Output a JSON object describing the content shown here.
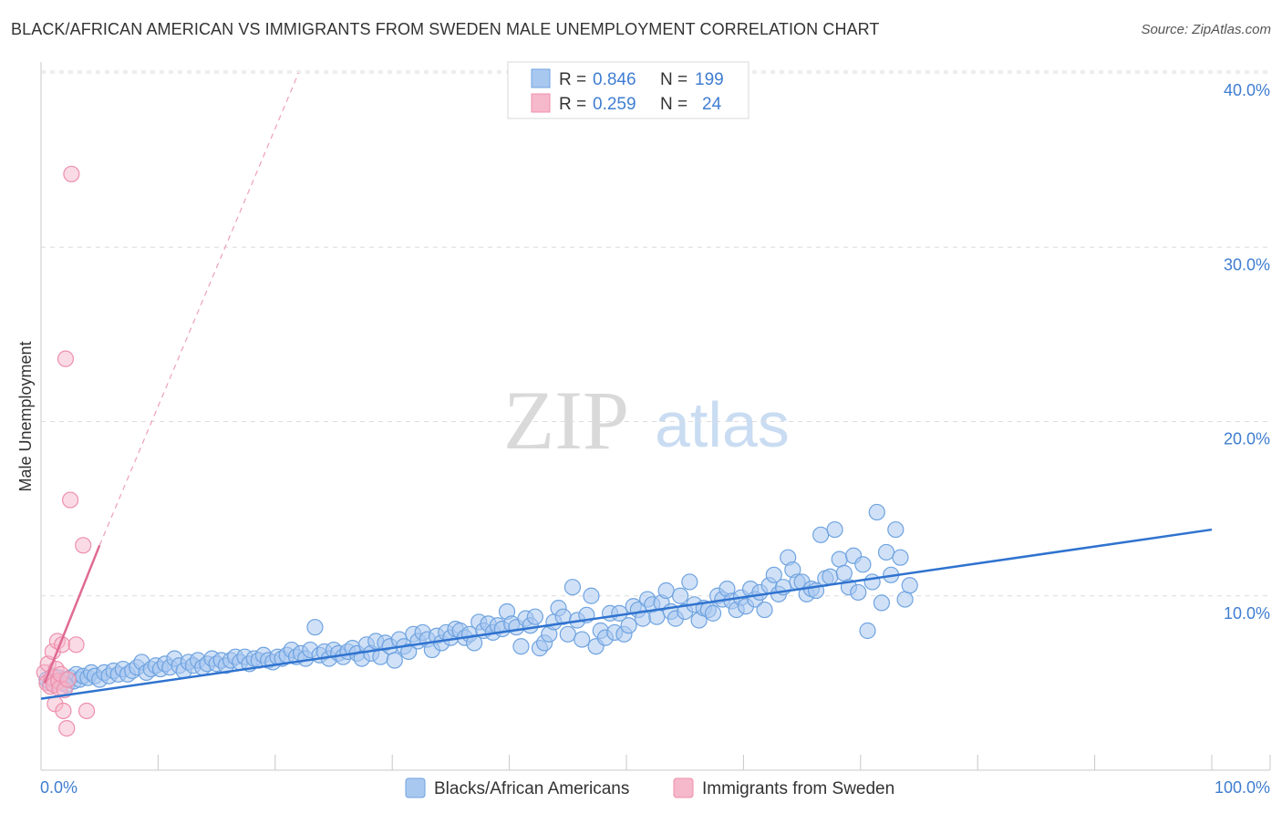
{
  "title": "BLACK/AFRICAN AMERICAN VS IMMIGRANTS FROM SWEDEN MALE UNEMPLOYMENT CORRELATION CHART",
  "source": "Source: ZipAtlas.com",
  "watermark": {
    "zip": "ZIP",
    "atlas": "atlas"
  },
  "legend": {
    "rows": [
      {
        "r_label": "R =",
        "r_value": "0.846",
        "n_label": "N =",
        "n_value": "199",
        "color": "#a9c8f0"
      },
      {
        "r_label": "R =",
        "r_value": "0.259",
        "n_label": "N =",
        "n_value": "24",
        "color": "#f6b8cb"
      }
    ]
  },
  "chart_data": {
    "type": "scatter",
    "title": "BLACK/AFRICAN AMERICAN VS IMMIGRANTS FROM SWEDEN MALE UNEMPLOYMENT CORRELATION CHART",
    "xlabel": "",
    "ylabel": "Male Unemployment",
    "xlim": [
      0,
      100
    ],
    "ylim": [
      0,
      40
    ],
    "x_tick_labels": [
      "0.0%",
      "100.0%"
    ],
    "y_ticks": [
      10,
      20,
      30,
      40
    ],
    "y_tick_labels": [
      "10.0%",
      "20.0%",
      "30.0%",
      "40.0%"
    ],
    "grid": true,
    "legend_position": "bottom",
    "series": [
      {
        "name": "Blacks/African Americans",
        "color": "#6fa3e0",
        "fill": "#a9c8f0",
        "r": 0.846,
        "n": 199,
        "trendline": {
          "x": [
            0,
            100
          ],
          "y": [
            4.1,
            13.8
          ]
        },
        "points": [
          [
            0.5,
            5.2
          ],
          [
            0.8,
            5.0
          ],
          [
            1.0,
            5.4
          ],
          [
            1.2,
            5.1
          ],
          [
            1.5,
            5.3
          ],
          [
            1.8,
            5.0
          ],
          [
            2.0,
            5.2
          ],
          [
            2.2,
            4.9
          ],
          [
            2.5,
            5.3
          ],
          [
            2.8,
            5.1
          ],
          [
            3.0,
            5.5
          ],
          [
            3.3,
            5.2
          ],
          [
            3.6,
            5.4
          ],
          [
            4.0,
            5.3
          ],
          [
            4.3,
            5.6
          ],
          [
            4.6,
            5.4
          ],
          [
            5.0,
            5.2
          ],
          [
            5.4,
            5.6
          ],
          [
            5.8,
            5.4
          ],
          [
            6.2,
            5.7
          ],
          [
            6.6,
            5.5
          ],
          [
            7.0,
            5.8
          ],
          [
            7.4,
            5.5
          ],
          [
            7.8,
            5.7
          ],
          [
            8.2,
            5.9
          ],
          [
            8.6,
            6.2
          ],
          [
            9.0,
            5.6
          ],
          [
            9.4,
            5.8
          ],
          [
            9.8,
            6.0
          ],
          [
            10.2,
            5.8
          ],
          [
            10.6,
            6.1
          ],
          [
            11.0,
            5.9
          ],
          [
            11.4,
            6.4
          ],
          [
            11.8,
            6.0
          ],
          [
            12.2,
            5.7
          ],
          [
            12.6,
            6.2
          ],
          [
            13.0,
            6.0
          ],
          [
            13.4,
            6.3
          ],
          [
            13.8,
            5.9
          ],
          [
            14.2,
            6.1
          ],
          [
            14.6,
            6.4
          ],
          [
            15.0,
            6.1
          ],
          [
            15.4,
            6.3
          ],
          [
            15.8,
            6.0
          ],
          [
            16.2,
            6.3
          ],
          [
            16.6,
            6.5
          ],
          [
            17.0,
            6.2
          ],
          [
            17.4,
            6.5
          ],
          [
            17.8,
            6.1
          ],
          [
            18.2,
            6.4
          ],
          [
            18.6,
            6.3
          ],
          [
            19.0,
            6.6
          ],
          [
            19.4,
            6.3
          ],
          [
            19.8,
            6.2
          ],
          [
            20.2,
            6.5
          ],
          [
            20.6,
            6.4
          ],
          [
            21.0,
            6.6
          ],
          [
            21.4,
            6.9
          ],
          [
            21.8,
            6.5
          ],
          [
            22.2,
            6.7
          ],
          [
            22.6,
            6.4
          ],
          [
            23.0,
            6.9
          ],
          [
            23.4,
            8.2
          ],
          [
            23.8,
            6.6
          ],
          [
            24.2,
            6.8
          ],
          [
            24.6,
            6.4
          ],
          [
            25.0,
            6.9
          ],
          [
            25.4,
            6.7
          ],
          [
            25.8,
            6.5
          ],
          [
            26.2,
            6.8
          ],
          [
            26.6,
            7.0
          ],
          [
            27.0,
            6.7
          ],
          [
            27.4,
            6.4
          ],
          [
            27.8,
            7.2
          ],
          [
            28.2,
            6.7
          ],
          [
            28.6,
            7.4
          ],
          [
            29.0,
            6.5
          ],
          [
            29.4,
            7.3
          ],
          [
            29.8,
            7.1
          ],
          [
            30.2,
            6.3
          ],
          [
            30.6,
            7.5
          ],
          [
            31.0,
            7.1
          ],
          [
            31.4,
            6.8
          ],
          [
            31.8,
            7.8
          ],
          [
            32.2,
            7.4
          ],
          [
            32.6,
            7.9
          ],
          [
            33.0,
            7.5
          ],
          [
            33.4,
            6.9
          ],
          [
            33.8,
            7.7
          ],
          [
            34.2,
            7.3
          ],
          [
            34.6,
            7.9
          ],
          [
            35.0,
            7.6
          ],
          [
            35.4,
            8.1
          ],
          [
            35.8,
            8.0
          ],
          [
            36.2,
            7.6
          ],
          [
            36.6,
            7.8
          ],
          [
            37.0,
            7.3
          ],
          [
            37.4,
            8.5
          ],
          [
            37.8,
            8.0
          ],
          [
            38.2,
            8.4
          ],
          [
            38.6,
            7.9
          ],
          [
            39.0,
            8.3
          ],
          [
            39.4,
            8.1
          ],
          [
            39.8,
            9.1
          ],
          [
            40.2,
            8.4
          ],
          [
            40.6,
            8.2
          ],
          [
            41.0,
            7.1
          ],
          [
            41.4,
            8.7
          ],
          [
            41.8,
            8.3
          ],
          [
            42.2,
            8.8
          ],
          [
            42.6,
            7.0
          ],
          [
            43.0,
            7.3
          ],
          [
            43.4,
            7.8
          ],
          [
            43.8,
            8.5
          ],
          [
            44.2,
            9.3
          ],
          [
            44.6,
            8.8
          ],
          [
            45.0,
            7.8
          ],
          [
            45.4,
            10.5
          ],
          [
            45.8,
            8.6
          ],
          [
            46.2,
            7.5
          ],
          [
            46.6,
            8.9
          ],
          [
            47.0,
            10.0
          ],
          [
            47.4,
            7.1
          ],
          [
            47.8,
            8.0
          ],
          [
            48.2,
            7.6
          ],
          [
            48.6,
            9.0
          ],
          [
            49.0,
            7.9
          ],
          [
            49.4,
            9.0
          ],
          [
            49.8,
            7.8
          ],
          [
            50.2,
            8.3
          ],
          [
            50.6,
            9.4
          ],
          [
            51.0,
            9.2
          ],
          [
            51.4,
            8.7
          ],
          [
            51.8,
            9.8
          ],
          [
            52.2,
            9.5
          ],
          [
            52.6,
            8.8
          ],
          [
            53.0,
            9.6
          ],
          [
            53.4,
            10.3
          ],
          [
            53.8,
            9.1
          ],
          [
            54.2,
            8.7
          ],
          [
            54.6,
            10.0
          ],
          [
            55.0,
            9.1
          ],
          [
            55.4,
            10.8
          ],
          [
            55.8,
            9.5
          ],
          [
            56.2,
            8.6
          ],
          [
            56.6,
            9.3
          ],
          [
            57.0,
            9.2
          ],
          [
            57.4,
            9.0
          ],
          [
            57.8,
            10.0
          ],
          [
            58.2,
            9.8
          ],
          [
            58.6,
            10.4
          ],
          [
            59.0,
            9.7
          ],
          [
            59.4,
            9.2
          ],
          [
            59.8,
            9.9
          ],
          [
            60.2,
            9.4
          ],
          [
            60.6,
            10.4
          ],
          [
            61.0,
            9.8
          ],
          [
            61.4,
            10.2
          ],
          [
            61.8,
            9.2
          ],
          [
            62.2,
            10.6
          ],
          [
            62.6,
            11.2
          ],
          [
            63.0,
            10.1
          ],
          [
            63.4,
            10.5
          ],
          [
            63.8,
            12.2
          ],
          [
            64.2,
            11.5
          ],
          [
            64.6,
            10.8
          ],
          [
            65.0,
            10.8
          ],
          [
            65.4,
            10.1
          ],
          [
            65.8,
            10.4
          ],
          [
            66.2,
            10.3
          ],
          [
            66.6,
            13.5
          ],
          [
            67.0,
            11.0
          ],
          [
            67.4,
            11.1
          ],
          [
            67.8,
            13.8
          ],
          [
            68.2,
            12.1
          ],
          [
            68.6,
            11.3
          ],
          [
            69.0,
            10.5
          ],
          [
            69.4,
            12.3
          ],
          [
            69.8,
            10.2
          ],
          [
            70.2,
            11.8
          ],
          [
            70.6,
            8.0
          ],
          [
            71.0,
            10.8
          ],
          [
            71.4,
            14.8
          ],
          [
            71.8,
            9.6
          ],
          [
            72.2,
            12.5
          ],
          [
            72.6,
            11.2
          ],
          [
            73.0,
            13.8
          ],
          [
            73.4,
            12.2
          ],
          [
            73.8,
            9.8
          ],
          [
            74.2,
            10.6
          ]
        ]
      },
      {
        "name": "Immigrants from Sweden",
        "color": "#ee8fac",
        "fill": "#f6b8cb",
        "r": 0.259,
        "n": 24,
        "trendline": {
          "x": [
            0.3,
            5.0
          ],
          "y": [
            5.0,
            12.9
          ],
          "extension": {
            "x": [
              5.0,
              22.0
            ],
            "y": [
              12.9,
              40.0
            ]
          }
        },
        "points": [
          [
            0.3,
            5.6
          ],
          [
            0.5,
            5.0
          ],
          [
            0.6,
            6.1
          ],
          [
            0.8,
            4.8
          ],
          [
            0.9,
            5.3
          ],
          [
            1.0,
            6.8
          ],
          [
            1.1,
            4.9
          ],
          [
            1.2,
            3.8
          ],
          [
            1.3,
            5.8
          ],
          [
            1.4,
            7.4
          ],
          [
            1.5,
            5.1
          ],
          [
            1.6,
            4.7
          ],
          [
            1.7,
            5.5
          ],
          [
            1.8,
            7.2
          ],
          [
            1.9,
            3.4
          ],
          [
            2.0,
            4.6
          ],
          [
            2.2,
            2.4
          ],
          [
            2.3,
            5.2
          ],
          [
            2.1,
            23.6
          ],
          [
            2.5,
            15.5
          ],
          [
            2.6,
            34.2
          ],
          [
            3.0,
            7.2
          ],
          [
            3.6,
            12.9
          ],
          [
            3.9,
            3.4
          ]
        ]
      }
    ]
  },
  "bottom_legend": [
    {
      "label": "Blacks/African Americans",
      "color": "#a9c8f0"
    },
    {
      "label": "Immigrants from Sweden",
      "color": "#f6b8cb"
    }
  ]
}
